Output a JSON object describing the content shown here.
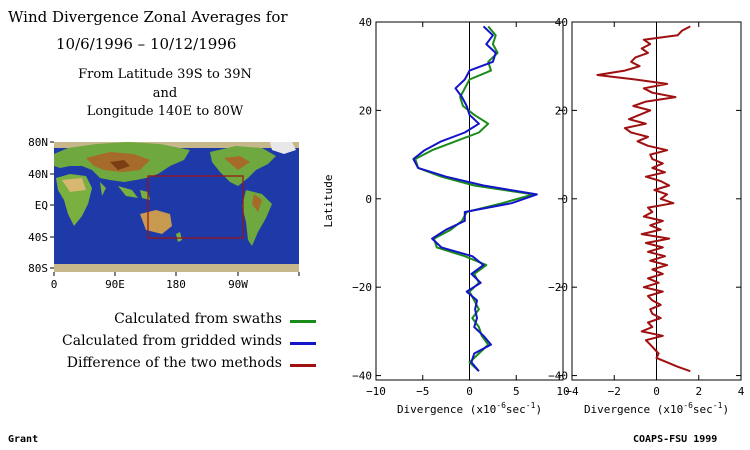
{
  "title": "Wind Divergence Zonal Averages for",
  "date_range": "10/6/1996 – 10/12/1996",
  "region_line1": "From Latitude 39S to 39N",
  "region_line2": "and",
  "region_line3": "Longitude 140E to 80W",
  "map": {
    "lat_labels": [
      "80N",
      "40N",
      "EQ",
      "40S",
      "80S"
    ],
    "lon_labels": [
      "0",
      "90E",
      "180",
      "90W"
    ]
  },
  "legend": [
    {
      "label": "Calculated from swaths",
      "color": "#1a8a1a"
    },
    {
      "label": "Calculated from gridded winds",
      "color": "#1414c8"
    },
    {
      "label": "Difference of the two methods",
      "color": "#a01010"
    }
  ],
  "footer_left": "Grant",
  "footer_right": "COAPS-FSU 1999",
  "chart_data": [
    {
      "type": "line",
      "ylabel": "Latitude",
      "xlabel": "Divergence (x10",
      "xlabel_exp": "-6",
      "xlabel_unit": "sec",
      "xlabel_unit_exp": "-1",
      "xlim": [
        -10,
        10
      ],
      "ylim": [
        -41,
        40
      ],
      "xticks": [
        -10,
        -5,
        0,
        5,
        10
      ],
      "yticks": [
        -40,
        -20,
        0,
        20,
        40
      ],
      "series": [
        {
          "name": "Calculated from swaths",
          "color": "#1a8a1a",
          "y": [
            39,
            37,
            35,
            33,
            31,
            29,
            27,
            25,
            23,
            21,
            19,
            17,
            15,
            13,
            11,
            9,
            7,
            5,
            3,
            1,
            -1,
            -3,
            -5,
            -7,
            -9,
            -11,
            -13,
            -15,
            -17,
            -19,
            -21,
            -23,
            -25,
            -27,
            -29,
            -31,
            -33,
            -35,
            -37,
            -39
          ],
          "values": [
            2.0,
            2.8,
            2.5,
            3.0,
            2.0,
            2.3,
            0.0,
            -0.5,
            -1.0,
            -0.7,
            0.5,
            2.0,
            1.0,
            -1.5,
            -4.0,
            -5.8,
            -5.5,
            -3.0,
            0.5,
            6.8,
            3.5,
            -0.3,
            -0.8,
            -2.0,
            -3.8,
            -3.5,
            -0.5,
            1.8,
            0.5,
            1.0,
            0.0,
            0.5,
            1.0,
            0.3,
            1.0,
            1.3,
            2.0,
            1.0,
            0.0,
            1.0
          ]
        },
        {
          "name": "Calculated from gridded winds",
          "color": "#1414c8",
          "y": [
            39,
            37,
            35,
            33,
            31,
            29,
            27,
            25,
            23,
            21,
            19,
            17,
            15,
            13,
            11,
            9,
            7,
            5,
            3,
            1,
            -1,
            -3,
            -5,
            -7,
            -9,
            -11,
            -13,
            -15,
            -17,
            -19,
            -21,
            -23,
            -25,
            -27,
            -29,
            -31,
            -33,
            -35,
            -37,
            -39
          ],
          "values": [
            1.5,
            2.5,
            1.8,
            2.8,
            2.5,
            0.0,
            -0.5,
            -1.5,
            -0.8,
            -0.3,
            0.0,
            1.0,
            -0.5,
            -3.0,
            -4.8,
            -6.0,
            -5.5,
            -2.5,
            1.5,
            7.2,
            4.5,
            -0.5,
            -0.5,
            -2.5,
            -4.0,
            -3.0,
            0.3,
            1.5,
            0.2,
            1.2,
            -0.3,
            0.8,
            0.6,
            0.8,
            0.5,
            1.5,
            2.3,
            0.5,
            0.2,
            1.0
          ]
        }
      ]
    },
    {
      "type": "line",
      "xlabel": "Divergence (x10",
      "xlabel_exp": "-6",
      "xlabel_unit": "sec",
      "xlabel_unit_exp": "-1",
      "xlim": [
        -4,
        4
      ],
      "ylim": [
        -41,
        40
      ],
      "xticks": [
        -4,
        -2,
        0,
        2,
        4
      ],
      "yticks": [
        -40,
        -20,
        0,
        20,
        40
      ],
      "series": [
        {
          "name": "Difference of the two methods",
          "color": "#a01010",
          "y": [
            39,
            38,
            37,
            36,
            35,
            34,
            33,
            32,
            31,
            30,
            29,
            28,
            27,
            26,
            25,
            24,
            23,
            22,
            21,
            20,
            19,
            18,
            17,
            16,
            15,
            14,
            13,
            12,
            11,
            10,
            9,
            8,
            7,
            6,
            5,
            4,
            3,
            2,
            1,
            0,
            -1,
            -2,
            -3,
            -4,
            -5,
            -6,
            -7,
            -8,
            -9,
            -10,
            -11,
            -12,
            -13,
            -14,
            -15,
            -16,
            -17,
            -18,
            -19,
            -20,
            -21,
            -22,
            -23,
            -24,
            -25,
            -26,
            -27,
            -28,
            -29,
            -30,
            -31,
            -32,
            -33,
            -34,
            -35,
            -36,
            -37,
            -38,
            -39
          ],
          "values": [
            1.6,
            1.2,
            1.0,
            -0.6,
            -0.3,
            -0.7,
            -0.4,
            -1.0,
            -1.2,
            -0.8,
            -1.5,
            -2.8,
            -1.0,
            0.5,
            -0.6,
            -0.2,
            0.9,
            -0.5,
            -1.1,
            -0.3,
            -0.8,
            -1.3,
            -0.5,
            -1.5,
            -1.2,
            -0.4,
            -0.9,
            -0.4,
            0.5,
            -0.3,
            -0.2,
            0.3,
            -0.2,
            0.4,
            -0.5,
            0.2,
            0.6,
            -0.1,
            0.5,
            0.2,
            0.8,
            -0.4,
            -0.2,
            -0.6,
            0.3,
            -0.3,
            0.2,
            -0.7,
            0.6,
            -0.5,
            0.3,
            -0.4,
            0.4,
            -0.3,
            0.5,
            -0.2,
            0.3,
            -0.4,
            0.1,
            -0.6,
            0.3,
            -0.4,
            -0.2,
            0.2,
            -0.3,
            -0.2,
            0.2,
            -0.4,
            -0.2,
            -0.7,
            0.3,
            -0.5,
            -0.3,
            -0.1,
            0.1,
            0.0,
            0.5,
            1.0,
            1.6
          ]
        }
      ]
    }
  ]
}
